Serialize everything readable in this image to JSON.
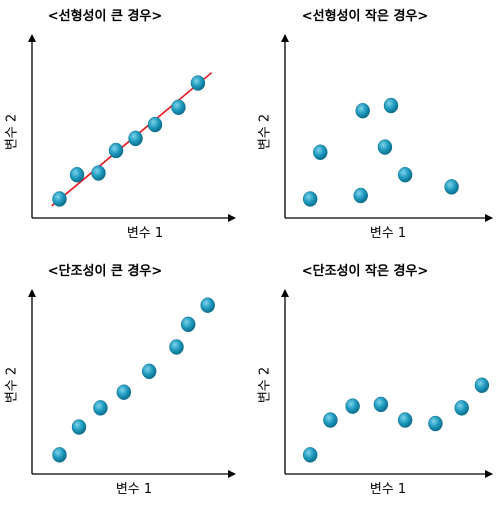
{
  "colors": {
    "point": "#1f9bbf",
    "point_highlight": "#7fd3ea",
    "point_shadow": "#0d6e8c",
    "trend_line": "#e8141b",
    "axis": "#000000"
  },
  "chart_data": [
    {
      "type": "scatter",
      "title": "<선형성이 큰 경우>",
      "xlabel": "변수 1",
      "ylabel": "변수 2",
      "xlim": [
        0,
        10
      ],
      "ylim": [
        0,
        10
      ],
      "grid": false,
      "points": [
        {
          "x": 1.0,
          "y": 1.1
        },
        {
          "x": 1.9,
          "y": 2.5
        },
        {
          "x": 3.0,
          "y": 2.6
        },
        {
          "x": 3.9,
          "y": 3.9
        },
        {
          "x": 4.9,
          "y": 4.6
        },
        {
          "x": 5.9,
          "y": 5.4
        },
        {
          "x": 7.1,
          "y": 6.4
        },
        {
          "x": 8.1,
          "y": 7.8
        }
      ],
      "trend_line": {
        "x": [
          0.6,
          8.8
        ],
        "y": [
          0.7,
          8.4
        ]
      }
    },
    {
      "type": "scatter",
      "title": "<선형성이 작은 경우>",
      "xlabel": "변수 1",
      "ylabel": "변수 2",
      "xlim": [
        0,
        10
      ],
      "ylim": [
        0,
        10
      ],
      "grid": false,
      "points": [
        {
          "x": 1.0,
          "y": 1.1
        },
        {
          "x": 1.5,
          "y": 3.8
        },
        {
          "x": 3.6,
          "y": 6.2
        },
        {
          "x": 3.5,
          "y": 1.3
        },
        {
          "x": 5.0,
          "y": 6.5
        },
        {
          "x": 4.7,
          "y": 4.1
        },
        {
          "x": 5.7,
          "y": 2.5
        },
        {
          "x": 8.0,
          "y": 1.8
        }
      ]
    },
    {
      "type": "scatter",
      "title": "<단조성이 큰 경우>",
      "xlabel": "변수 1",
      "ylabel": "변수 2",
      "xlim": [
        0,
        10
      ],
      "ylim": [
        0,
        10
      ],
      "grid": false,
      "points": [
        {
          "x": 1.0,
          "y": 1.1
        },
        {
          "x": 2.0,
          "y": 2.7
        },
        {
          "x": 3.1,
          "y": 3.8
        },
        {
          "x": 4.3,
          "y": 4.7
        },
        {
          "x": 5.6,
          "y": 5.9
        },
        {
          "x": 7.0,
          "y": 7.3
        },
        {
          "x": 7.6,
          "y": 8.6
        },
        {
          "x": 8.6,
          "y": 9.7
        }
      ]
    },
    {
      "type": "scatter",
      "title": "<단조성이 작은 경우>",
      "xlabel": "변수 1",
      "ylabel": "변수 2",
      "xlim": [
        0,
        10
      ],
      "ylim": [
        0,
        10
      ],
      "grid": false,
      "points": [
        {
          "x": 1.0,
          "y": 1.1
        },
        {
          "x": 2.0,
          "y": 3.1
        },
        {
          "x": 3.1,
          "y": 3.9
        },
        {
          "x": 4.5,
          "y": 4.0
        },
        {
          "x": 5.7,
          "y": 3.1
        },
        {
          "x": 7.2,
          "y": 2.9
        },
        {
          "x": 8.5,
          "y": 3.8
        },
        {
          "x": 9.5,
          "y": 5.1
        }
      ]
    }
  ]
}
